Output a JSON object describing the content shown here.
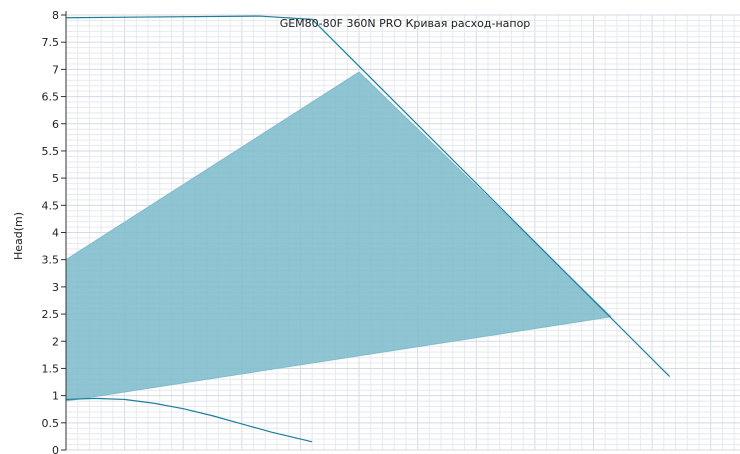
{
  "chart_data": {
    "type": "line",
    "title": "GEM80-80F 360N PRO Кривая расход-напор",
    "xlabel": "",
    "ylabel": "Head(m)",
    "ylim": [
      0,
      8
    ],
    "xlim": [
      0,
      11.5
    ],
    "yticks": [
      "0",
      "0.5",
      "1",
      "1.5",
      "2",
      "2.5",
      "3",
      "3.5",
      "4",
      "4.5",
      "5",
      "5.5",
      "6",
      "6.5",
      "7",
      "7.5",
      "8"
    ],
    "grid": true,
    "colors": {
      "line": "#1a7f9a",
      "fill": "#7fbccc",
      "grid": "#e6e9ef",
      "axis": "#333333"
    },
    "series": [
      {
        "role": "envelope",
        "x": [
          0,
          5,
          9.3,
          0
        ],
        "y": [
          3.5,
          6.95,
          2.45,
          0.9
        ]
      },
      {
        "role": "max-curve",
        "x": [
          0,
          3.3,
          4.2,
          10.3
        ],
        "y": [
          7.95,
          7.98,
          7.92,
          1.35
        ]
      },
      {
        "role": "min-curve",
        "x": [
          0,
          0.5,
          1,
          1.5,
          2,
          2.5,
          3,
          3.5,
          4.2
        ],
        "y": [
          0.93,
          0.95,
          0.93,
          0.86,
          0.76,
          0.63,
          0.48,
          0.33,
          0.15
        ]
      }
    ]
  }
}
